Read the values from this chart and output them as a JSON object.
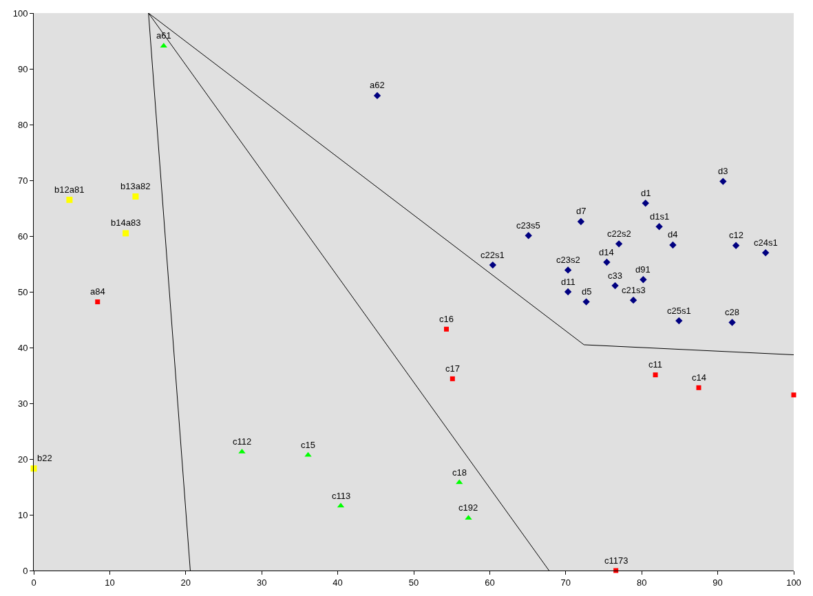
{
  "chart_data": {
    "type": "scatter",
    "xlim": [
      0,
      100
    ],
    "ylim": [
      0,
      100
    ],
    "xticks": [
      0,
      10,
      20,
      30,
      40,
      50,
      60,
      70,
      80,
      90,
      100
    ],
    "yticks": [
      0,
      10,
      20,
      30,
      40,
      50,
      60,
      70,
      80,
      90,
      100
    ],
    "grid": false,
    "series": [
      {
        "type": "line",
        "color": "#000000",
        "marker": "none",
        "x": [
          15.1,
          20.6
        ],
        "values": [
          100,
          0
        ]
      },
      {
        "type": "line",
        "color": "#000000",
        "marker": "none",
        "x": [
          15.1,
          67.8
        ],
        "values": [
          100,
          0
        ]
      },
      {
        "type": "line",
        "color": "#000000",
        "marker": "none",
        "x": [
          15.1,
          72.4,
          100
        ],
        "values": [
          100,
          40.5,
          38.7
        ]
      },
      {
        "color": "#00ff00",
        "marker": "triangle",
        "x": [
          17.1,
          27.4,
          36.1,
          40.4,
          56.0,
          57.2
        ],
        "values": [
          94.1,
          21.3,
          20.7,
          11.6,
          15.8,
          9.4
        ]
      },
      {
        "color": "#ffff00",
        "marker": "square",
        "x": [
          4.7,
          13.4,
          12.1,
          0
        ],
        "values": [
          66.5,
          67.1,
          60.5,
          18.3
        ]
      },
      {
        "color": "#ff0000",
        "marker": "square",
        "x": [
          8.4,
          54.3,
          55.1,
          81.8,
          87.5,
          100,
          76.6
        ],
        "values": [
          48.2,
          43.3,
          34.4,
          35.1,
          32.8,
          31.5,
          0
        ]
      },
      {
        "color": "#000080",
        "marker": "diamond",
        "x": [
          45.2,
          90.7,
          80.5,
          82.3,
          72.0,
          65.1,
          77.0,
          84.1,
          92.4,
          96.3,
          60.4,
          75.4,
          70.3,
          80.2,
          76.5,
          70.3,
          78.9,
          72.7,
          84.9,
          91.9
        ],
        "values": [
          85.2,
          69.8,
          65.9,
          61.7,
          62.6,
          60.1,
          58.6,
          58.4,
          58.3,
          57.0,
          54.8,
          55.3,
          53.9,
          52.2,
          51.1,
          50.0,
          48.5,
          48.2,
          44.8,
          44.5
        ]
      }
    ],
    "annotations": [
      {
        "text": "a61",
        "x": 17.1,
        "y": 94.1
      },
      {
        "text": "c112",
        "x": 27.4,
        "y": 21.3
      },
      {
        "text": "c15",
        "x": 36.1,
        "y": 20.7
      },
      {
        "text": "c113",
        "x": 40.4,
        "y": 11.6
      },
      {
        "text": "c18",
        "x": 56.0,
        "y": 15.8
      },
      {
        "text": "c192",
        "x": 57.2,
        "y": 9.4
      },
      {
        "text": "b12a81",
        "x": 4.7,
        "y": 66.5
      },
      {
        "text": "b13a82",
        "x": 13.4,
        "y": 67.1
      },
      {
        "text": "b14a83",
        "x": 12.1,
        "y": 60.5
      },
      {
        "text": "b22",
        "x": 0,
        "y": 18.3
      },
      {
        "text": "a84",
        "x": 8.4,
        "y": 48.2
      },
      {
        "text": "c16",
        "x": 54.3,
        "y": 43.3
      },
      {
        "text": "c17",
        "x": 55.1,
        "y": 34.4
      },
      {
        "text": "c11",
        "x": 81.8,
        "y": 35.1
      },
      {
        "text": "c14",
        "x": 87.5,
        "y": 32.8
      },
      {
        "text": "c1173",
        "x": 76.6,
        "y": 0
      },
      {
        "text": "a62",
        "x": 45.2,
        "y": 85.2
      },
      {
        "text": "d3",
        "x": 90.7,
        "y": 69.8
      },
      {
        "text": "d1",
        "x": 80.5,
        "y": 65.9
      },
      {
        "text": "d1s1",
        "x": 82.3,
        "y": 61.7
      },
      {
        "text": "d7",
        "x": 72.0,
        "y": 62.6
      },
      {
        "text": "c23s5",
        "x": 65.1,
        "y": 60.1
      },
      {
        "text": "c22s2",
        "x": 77.0,
        "y": 58.6
      },
      {
        "text": "d4",
        "x": 84.1,
        "y": 58.4
      },
      {
        "text": "c12",
        "x": 92.4,
        "y": 58.3
      },
      {
        "text": "c24s1",
        "x": 96.3,
        "y": 57.0
      },
      {
        "text": "c22s1",
        "x": 60.4,
        "y": 54.8
      },
      {
        "text": "d14",
        "x": 75.4,
        "y": 55.3
      },
      {
        "text": "c23s2",
        "x": 70.3,
        "y": 53.9
      },
      {
        "text": "d91",
        "x": 80.2,
        "y": 52.2
      },
      {
        "text": "c33",
        "x": 76.5,
        "y": 51.1
      },
      {
        "text": "d11",
        "x": 70.3,
        "y": 50.0
      },
      {
        "text": "c21s3",
        "x": 78.9,
        "y": 48.5
      },
      {
        "text": "d5",
        "x": 72.7,
        "y": 48.2
      },
      {
        "text": "c25s1",
        "x": 84.9,
        "y": 44.8
      },
      {
        "text": "c28",
        "x": 91.9,
        "y": 44.5
      }
    ]
  }
}
